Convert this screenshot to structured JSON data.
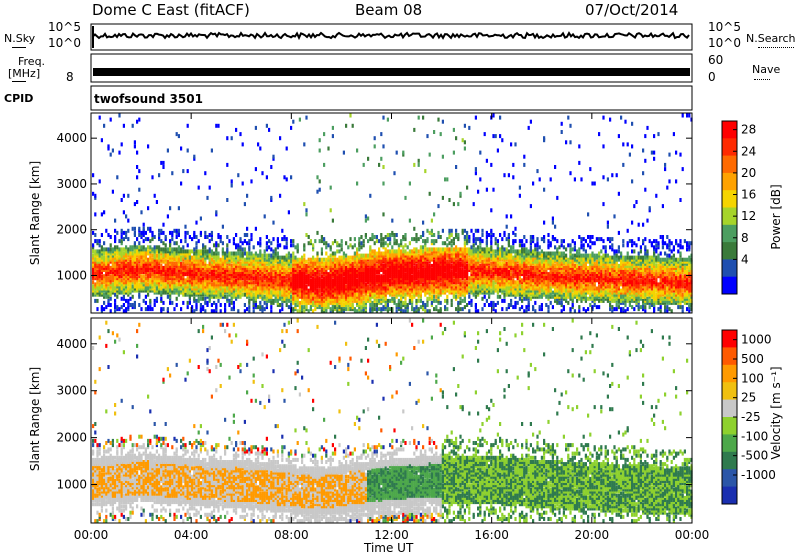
{
  "header": {
    "title_left": "Dome C East (fitACF)",
    "title_center": "Beam 08",
    "title_right": "07/Oct/2014"
  },
  "strip_panels": {
    "nsky": {
      "label": "N.Sky",
      "tick_top": "10^5",
      "tick_bottom": "10^0"
    },
    "nsearch": {
      "label": "N.Search",
      "tick_top": "10^5",
      "tick_bottom": "10^0"
    },
    "freq": {
      "label_line1": "Freq.",
      "label_line2": "[MHz]",
      "tick_top": "",
      "tick_bottom": "8"
    },
    "nave": {
      "label": "Nave",
      "tick_top": "60",
      "tick_bottom": "0"
    },
    "cpid": {
      "label": "CPID",
      "value": "twofsound 3501"
    }
  },
  "colors": {
    "power_scale": [
      "#0000ff",
      "#1f4fb0",
      "#3a7a3a",
      "#4c9e60",
      "#a6d42a",
      "#f5d400",
      "#ffa200",
      "#ff6a00",
      "#ff2a00",
      "#ff0000"
    ],
    "velocity_scale": [
      "#1a2fb0",
      "#2b56a8",
      "#2f7a4e",
      "#4da84a",
      "#8ed12e",
      "#c8c8c8",
      "#f0c010",
      "#ff9a00",
      "#ff5a00",
      "#ff0000"
    ]
  },
  "chart_data": [
    {
      "type": "heatmap",
      "name": "power",
      "ylabel": "Slant Range [km]",
      "xlabel": "",
      "x_ticks": [
        "00:00",
        "04:00",
        "08:00",
        "12:00",
        "16:00",
        "20:00",
        "00:00"
      ],
      "y_ticks": [
        1000,
        2000,
        3000,
        4000
      ],
      "ylim": [
        180,
        4550
      ],
      "xlim_hours": [
        0,
        24
      ],
      "colorbar": {
        "label": "Power [dB]",
        "ticks": [
          "28",
          "24",
          "20",
          "16",
          "12",
          "8",
          "4"
        ],
        "range": [
          0,
          30
        ]
      },
      "echo_band_center_km": [
        1050,
        1150,
        1050,
        1000,
        900,
        850,
        900,
        1050,
        1100,
        1100,
        1000,
        950,
        850
      ],
      "echo_band_hours": [
        0,
        2,
        4,
        6,
        8,
        9,
        10,
        12,
        14,
        16,
        18,
        20,
        24
      ]
    },
    {
      "type": "heatmap",
      "name": "velocity",
      "ylabel": "Slant Range [km]",
      "xlabel": "Time UT",
      "x_ticks": [
        "00:00",
        "04:00",
        "08:00",
        "12:00",
        "16:00",
        "20:00",
        "00:00"
      ],
      "y_ticks": [
        1000,
        2000,
        3000,
        4000
      ],
      "ylim": [
        180,
        4550
      ],
      "xlim_hours": [
        0,
        24
      ],
      "colorbar": {
        "label": "Velocity [m s⁻¹]",
        "ticks": [
          "1000",
          "500",
          "100",
          "25",
          "-25",
          "-100",
          "-500",
          "-1000"
        ],
        "range": [
          -1000,
          1000
        ]
      }
    }
  ]
}
